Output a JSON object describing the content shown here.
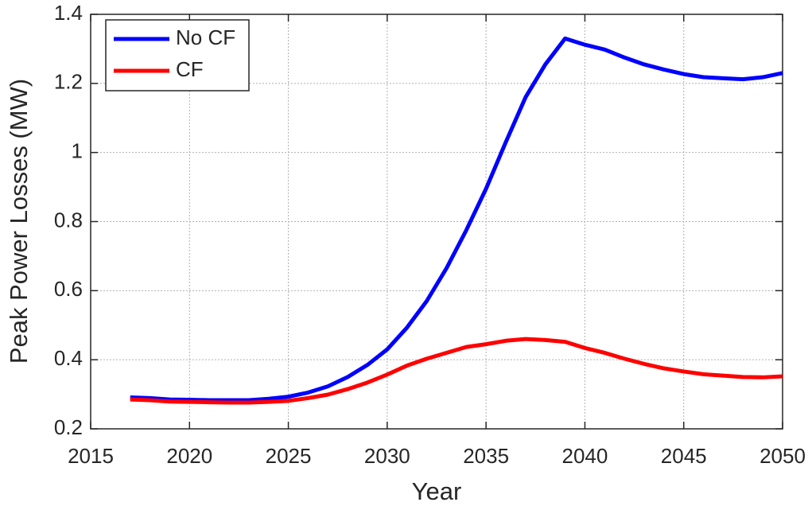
{
  "chart_data": {
    "type": "line",
    "x_label": "Year",
    "y_label": "Peak Power Losses (MW)",
    "x": [
      2017,
      2018,
      2019,
      2020,
      2021,
      2022,
      2023,
      2024,
      2025,
      2026,
      2027,
      2028,
      2029,
      2030,
      2031,
      2032,
      2033,
      2034,
      2035,
      2036,
      2037,
      2038,
      2039,
      2040,
      2041,
      2042,
      2043,
      2044,
      2045,
      2046,
      2047,
      2048,
      2049,
      2050
    ],
    "series": [
      {
        "name": "No CF",
        "color": "#0000ff",
        "values": [
          0.291,
          0.289,
          0.285,
          0.284,
          0.283,
          0.283,
          0.283,
          0.287,
          0.293,
          0.305,
          0.323,
          0.35,
          0.385,
          0.43,
          0.493,
          0.57,
          0.665,
          0.775,
          0.895,
          1.03,
          1.16,
          1.255,
          1.33,
          1.312,
          1.298,
          1.275,
          1.255,
          1.24,
          1.227,
          1.218,
          1.215,
          1.212,
          1.218,
          1.23
        ]
      },
      {
        "name": "CF",
        "color": "#ff0000",
        "values": [
          0.285,
          0.283,
          0.279,
          0.278,
          0.277,
          0.276,
          0.276,
          0.278,
          0.281,
          0.289,
          0.299,
          0.315,
          0.334,
          0.357,
          0.383,
          0.403,
          0.42,
          0.437,
          0.445,
          0.455,
          0.46,
          0.457,
          0.452,
          0.434,
          0.42,
          0.403,
          0.388,
          0.375,
          0.366,
          0.358,
          0.354,
          0.35,
          0.349,
          0.352
        ]
      }
    ],
    "xlim": [
      2015,
      2050
    ],
    "xticks": [
      2015,
      2020,
      2025,
      2030,
      2035,
      2040,
      2045,
      2050
    ],
    "ylim": [
      0.2,
      1.4
    ],
    "yticks": [
      0.2,
      0.4,
      0.6,
      0.8,
      1,
      1.2,
      1.4
    ],
    "grid": true,
    "legend": "upper left"
  }
}
